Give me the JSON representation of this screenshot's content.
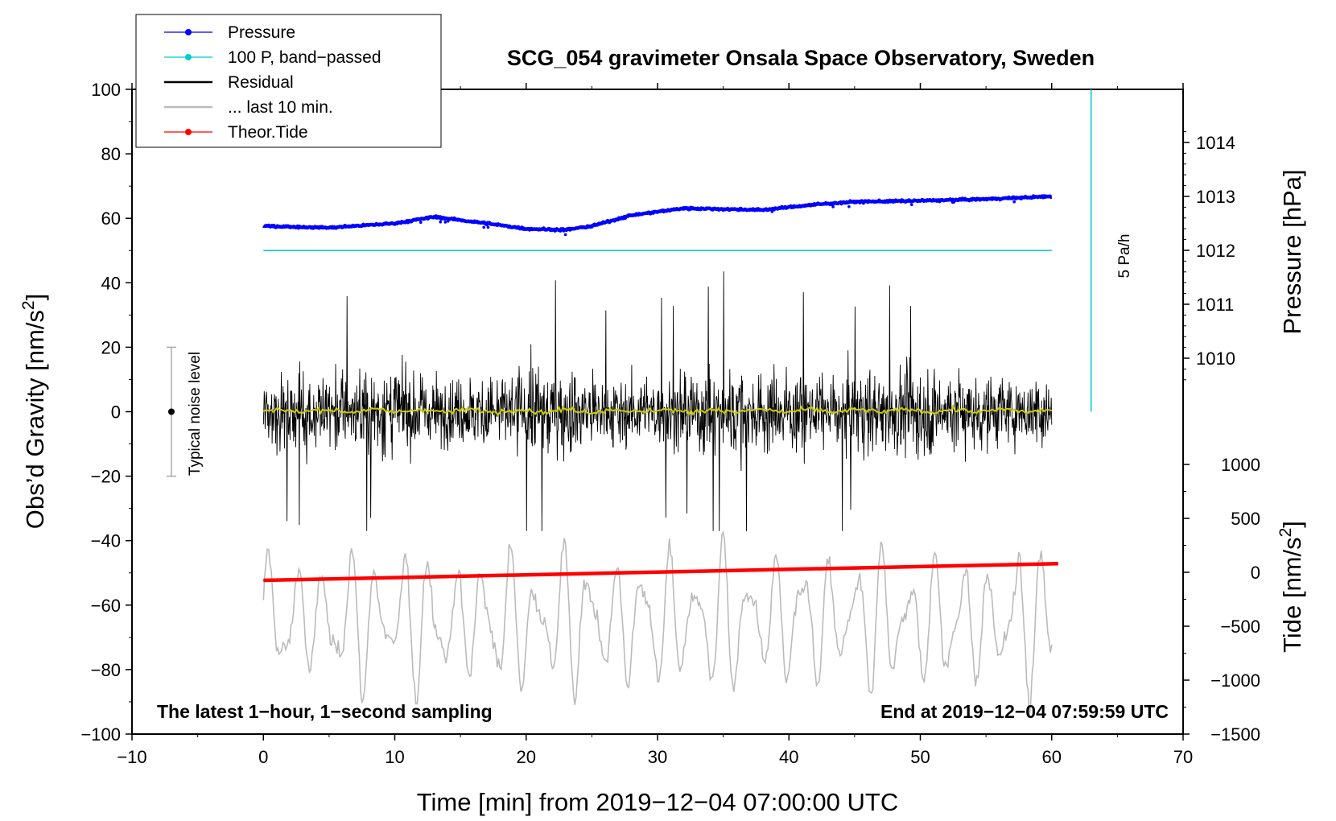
{
  "chart_data": {
    "type": "line",
    "title": "SCG_054 gravimeter Onsala Space Observatory, Sweden",
    "xlabel": "Time [min] from 2019−12−04 07:00:00 UTC",
    "ylabel_left": "Obs’d Gravity [nm/s",
    "ylabel_left_sup": "2",
    "ylabel_left_end": "]",
    "ylabel_right_pressure": "Pressure [hPa]",
    "ylabel_right_tide": "Tide [nm/s",
    "ylabel_right_tide_sup": "2",
    "ylabel_right_tide_end": "]",
    "xlim": [
      -10,
      70
    ],
    "ylim_left": [
      -100,
      100
    ],
    "x_ticks": [
      "−10",
      "0",
      "10",
      "20",
      "30",
      "40",
      "50",
      "60",
      "70"
    ],
    "y_ticks_left": [
      "100",
      "80",
      "60",
      "40",
      "20",
      "0",
      "−20",
      "−40",
      "−60",
      "−80",
      "−100"
    ],
    "pressure_ticks": [
      "1014",
      "1013",
      "1012",
      "1011",
      "1010"
    ],
    "pressure_tick_values": [
      1014,
      1013,
      1012,
      1011,
      1010
    ],
    "tide_ticks": [
      "1000",
      "500",
      "0",
      "−500",
      "−1000",
      "−1500"
    ],
    "tide_tick_values": [
      1000,
      500,
      0,
      -500,
      -1000,
      -1500
    ],
    "legend": [
      {
        "label": "Pressure",
        "color": "#0000ff",
        "marker": "dot"
      },
      {
        "label": "100 P, band−passed",
        "color": "#00cccc",
        "marker": "dot"
      },
      {
        "label": "Residual",
        "color": "#000000",
        "marker": "line"
      },
      {
        "label": "... last 10 min.",
        "color": "#bbbbbb",
        "marker": "line"
      },
      {
        "label": "Theor.Tide",
        "color": "#ff0000",
        "marker": "dot"
      }
    ],
    "series": [
      {
        "name": "Pressure",
        "axis": "pressure",
        "color": "#0000ff",
        "x": [
          0,
          5,
          10,
          13,
          17,
          20,
          23,
          25,
          28,
          32,
          38,
          42,
          45,
          50,
          55,
          60
        ],
        "values": [
          1012.45,
          1012.42,
          1012.5,
          1012.62,
          1012.5,
          1012.4,
          1012.38,
          1012.45,
          1012.65,
          1012.78,
          1012.75,
          1012.85,
          1012.9,
          1012.92,
          1012.95,
          1013.0
        ]
      },
      {
        "name": "100 P, band−passed",
        "axis": "gravity",
        "color": "#00cccc",
        "x": [
          0,
          60
        ],
        "values": [
          50,
          50
        ]
      },
      {
        "name": "Residual",
        "axis": "gravity",
        "color": "#000000",
        "x": [
          0,
          60
        ],
        "amplitude": 20,
        "peak_max": 48,
        "peak_min": -37
      },
      {
        "name": "Residual smoothed",
        "axis": "gravity",
        "color": "#cccc00",
        "x": [
          0,
          60
        ],
        "values": [
          0,
          0
        ]
      },
      {
        "name": "... last 10 min.",
        "axis": "gravity",
        "color": "#bbbbbb",
        "x": [
          0,
          60
        ],
        "center": -65,
        "amplitude": 22
      },
      {
        "name": "Theor.Tide",
        "axis": "tide",
        "color": "#ff0000",
        "x": [
          0,
          60.5
        ],
        "values": [
          -75,
          80
        ]
      }
    ],
    "rate_bar": {
      "label": "5 Pa/h",
      "x": 63,
      "y_range": [
        0,
        100
      ]
    },
    "noise_marker": {
      "label": "Typical noise level",
      "x": -7,
      "center": 0,
      "range": [
        -20,
        20
      ]
    },
    "bottom_left_note": "The latest 1−hour, 1−second sampling",
    "bottom_right_note": "End at 2019−12−04 07:59:59 UTC"
  }
}
